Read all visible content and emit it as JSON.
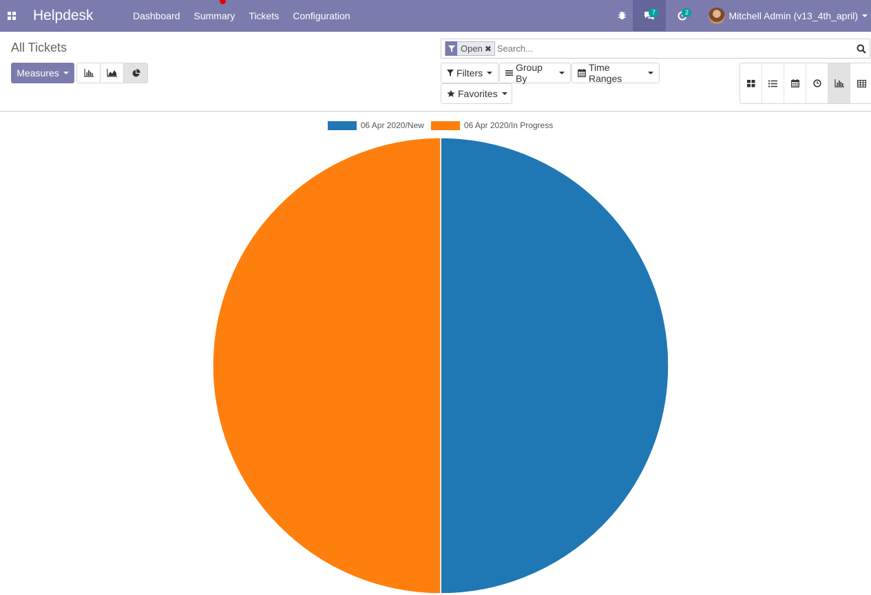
{
  "navbar": {
    "brand": "Helpdesk",
    "menu": [
      "Dashboard",
      "Summary",
      "Tickets",
      "Configuration"
    ],
    "messages_count": "7",
    "activities_count": "2",
    "user_name": "Mitchell Admin (v13_4th_april)"
  },
  "control_panel": {
    "breadcrumb": "All Tickets",
    "measures_label": "Measures",
    "facet_value": "Open",
    "search_placeholder": "Search...",
    "filters_label": "Filters",
    "group_by_label": "Group By",
    "time_ranges_label": "Time Ranges",
    "favorites_label": "Favorites",
    "active_chart_type": "pie",
    "active_view": "graph"
  },
  "colors": {
    "navbar": "#7c7bad",
    "series_new": "#1f77b4",
    "series_in_progress": "#ff7f0e"
  },
  "chart_data": {
    "type": "pie",
    "title": "",
    "series": [
      {
        "name": "06 Apr 2020/New",
        "value": 1,
        "color": "#1f77b4"
      },
      {
        "name": "06 Apr 2020/In Progress",
        "value": 1,
        "color": "#ff7f0e"
      }
    ],
    "legend_position": "top-center"
  }
}
